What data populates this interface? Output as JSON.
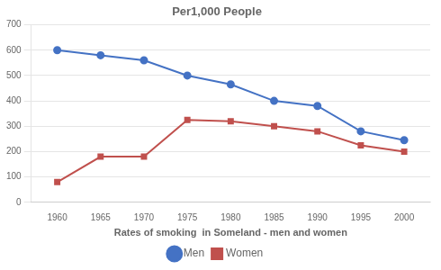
{
  "chart_data": {
    "type": "line",
    "title": "Per1,000 People",
    "xlabel": "Rates of smoking  in Someland - men and women",
    "x": [
      1960,
      1965,
      1970,
      1975,
      1980,
      1985,
      1990,
      1995,
      2000
    ],
    "series": [
      {
        "name": "Men",
        "color": "#4472C4",
        "marker": "circle",
        "values": [
          600,
          580,
          560,
          500,
          465,
          400,
          380,
          280,
          245
        ]
      },
      {
        "name": "Women",
        "color": "#C0504D",
        "marker": "square",
        "values": [
          80,
          180,
          180,
          325,
          320,
          300,
          280,
          225,
          200
        ]
      }
    ],
    "xlim": [
      1957,
      2003
    ],
    "xticks": [
      1960,
      1965,
      1970,
      1975,
      1980,
      1985,
      1990,
      1995,
      2000
    ],
    "ylim": [
      0,
      700
    ],
    "yticks": [
      0,
      100,
      200,
      300,
      400,
      500,
      600,
      700
    ],
    "grid": true,
    "legend": "bottom"
  }
}
